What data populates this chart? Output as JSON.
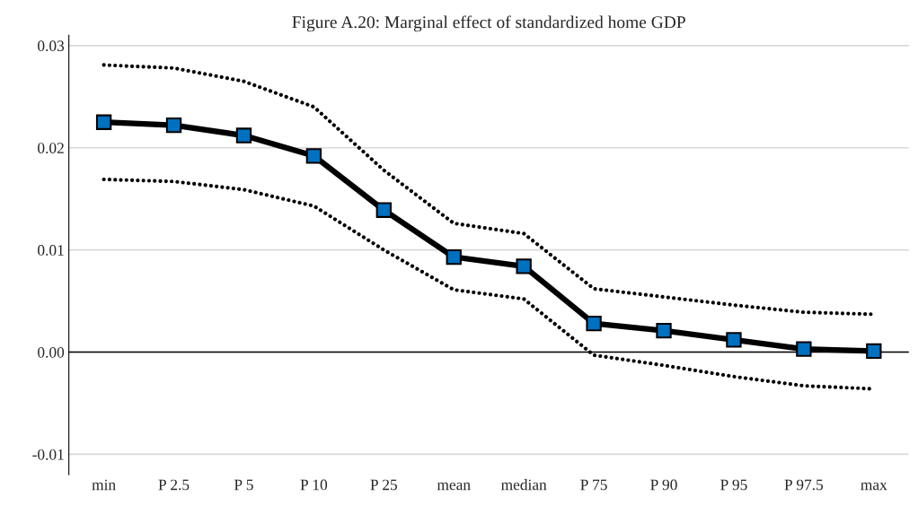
{
  "chart_data": {
    "type": "line",
    "title": "Figure A.20: Marginal effect of standardized home GDP",
    "categories": [
      "min",
      "P 2.5",
      "P 5",
      "P 10",
      "P 25",
      "mean",
      "median",
      "P 75",
      "P 90",
      "P 95",
      "P 97.5",
      "max"
    ],
    "series": [
      {
        "color": "#000000",
        "line_style": "dotted",
        "marker": "none",
        "values": [
          0.0281,
          0.0278,
          0.0265,
          0.024,
          0.0178,
          0.0126,
          0.0116,
          0.0062,
          0.0054,
          0.0046,
          0.0039,
          0.0037
        ]
      },
      {
        "color": "#0070c0",
        "line_style": "solid",
        "marker": "square",
        "values": [
          0.0225,
          0.0222,
          0.0212,
          0.0192,
          0.0139,
          0.0093,
          0.0084,
          0.0028,
          0.0021,
          0.0012,
          0.0003,
          0.0001
        ]
      },
      {
        "color": "#000000",
        "line_style": "dotted",
        "marker": "none",
        "values": [
          0.0169,
          0.0167,
          0.0159,
          0.0143,
          0.01,
          0.0061,
          0.0052,
          -0.0003,
          -0.0013,
          -0.0024,
          -0.0033,
          -0.0036
        ]
      }
    ],
    "ylim": [
      -0.012,
      0.031
    ],
    "yticks": [
      {
        "value": -0.01,
        "label": "-0.01"
      },
      {
        "value": 0,
        "label": "0.00"
      },
      {
        "value": 0.01,
        "label": "0.01"
      },
      {
        "value": 0.02,
        "label": "0.02"
      },
      {
        "value": 0.03,
        "label": "0.03"
      }
    ],
    "ref_lines": [
      {
        "axis": "y",
        "value": 0,
        "color": "#000000"
      }
    ],
    "grid": "y",
    "legend": false
  }
}
